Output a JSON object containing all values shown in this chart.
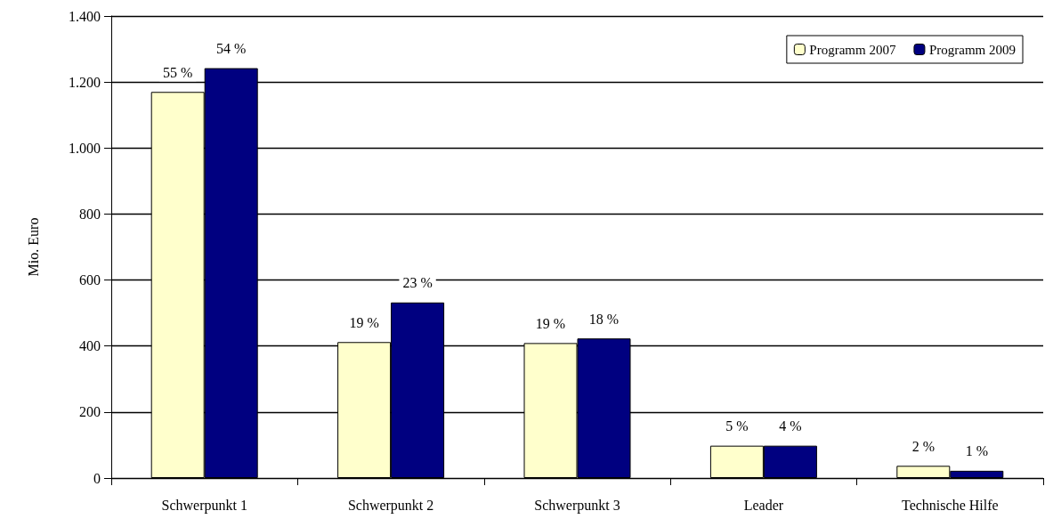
{
  "chart_data": {
    "type": "bar",
    "ylabel": "Mio. Euro",
    "categories": [
      "Schwerpunkt 1",
      "Schwerpunkt 2",
      "Schwerpunkt 3",
      "Leader",
      "Technische Hilfe"
    ],
    "series": [
      {
        "name": "Programm 2007",
        "color": "#ffffcc",
        "values": [
          1170,
          412,
          409,
          98,
          37
        ]
      },
      {
        "name": "Programm 2009",
        "color": "#000080",
        "values": [
          1242,
          532,
          423,
          98,
          22
        ]
      }
    ],
    "annotations": [
      {
        "text": "55 %",
        "x": "Schwerpunkt 1",
        "y": 1170
      },
      {
        "text": "19 %",
        "x": "Schwerpunkt 2",
        "y": 412
      },
      {
        "text": "19 %",
        "x": "Schwerpunkt 3",
        "y": 409
      },
      {
        "text": "5 %",
        "x": "Leader",
        "y": 98
      },
      {
        "text": "2 %",
        "x": "Technische Hilfe",
        "y": 37
      },
      {
        "text": "54 %",
        "x": "Schwerpunkt 1",
        "y": 1242
      },
      {
        "text": "23 %",
        "x": "Schwerpunkt 2",
        "y": 532
      },
      {
        "text": "18 %",
        "x": "Schwerpunkt 3",
        "y": 423
      },
      {
        "text": "4 %",
        "x": "Leader",
        "y": 98
      },
      {
        "text": "1 %",
        "x": "Technische Hilfe",
        "y": 22
      }
    ],
    "ylim": [
      0,
      1400
    ],
    "yticks": [
      0,
      200,
      400,
      600,
      800,
      {
        "value": 1000,
        "label": "1.000"
      },
      {
        "value": 1200,
        "label": "1.200"
      },
      {
        "value": 1400,
        "label": "1.400"
      }
    ],
    "grid": "y",
    "legend": "top right"
  }
}
